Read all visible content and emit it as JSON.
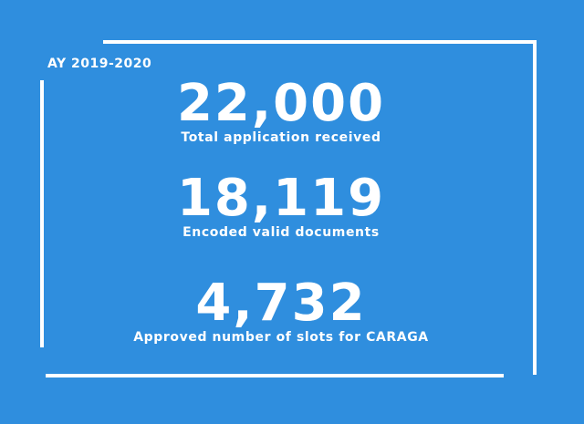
{
  "year_label": "AY 2019-2020",
  "stats": [
    {
      "number": "22,000",
      "caption": "Total application received"
    },
    {
      "number": "18,119",
      "caption": "Encoded valid documents"
    },
    {
      "number": "4,732",
      "caption": "Approved number of slots for CARAGA"
    }
  ]
}
